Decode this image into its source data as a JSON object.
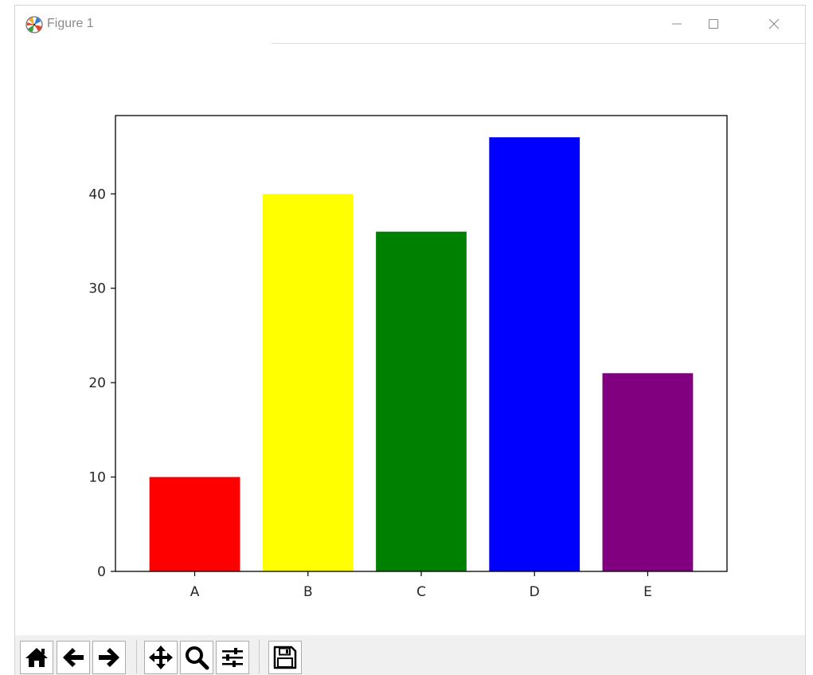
{
  "window": {
    "title": "Figure 1",
    "controls": {
      "minimize_icon": "minimize-icon",
      "maximize_icon": "maximize-icon",
      "close_icon": "close-icon"
    }
  },
  "chart_data": {
    "type": "bar",
    "categories": [
      "A",
      "B",
      "C",
      "D",
      "E"
    ],
    "values": [
      10,
      40,
      36,
      46,
      21
    ],
    "colors": [
      "#ff0000",
      "#ffff00",
      "#008000",
      "#0000ff",
      "#800080"
    ],
    "title": "",
    "xlabel": "",
    "ylabel": "",
    "ylim": [
      0,
      48.3
    ],
    "yticks": [
      0,
      10,
      20,
      30,
      40
    ],
    "grid": false
  },
  "toolbar": {
    "buttons": [
      {
        "name": "home-button",
        "icon": "home-icon"
      },
      {
        "name": "back-button",
        "icon": "arrow-left-icon"
      },
      {
        "name": "forward-button",
        "icon": "arrow-right-icon"
      },
      {
        "name": "pan-button",
        "icon": "move-icon"
      },
      {
        "name": "zoom-button",
        "icon": "magnifier-icon"
      },
      {
        "name": "configure-subplots-button",
        "icon": "sliders-icon"
      },
      {
        "name": "save-button",
        "icon": "floppy-disk-icon"
      }
    ]
  }
}
